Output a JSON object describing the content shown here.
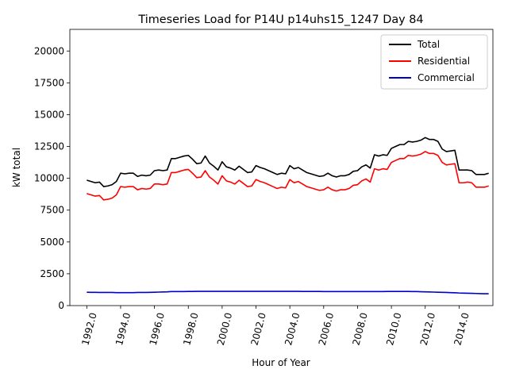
{
  "chart_data": {
    "type": "line",
    "title": "Timeseries Load for P14U p14uhs15_1247  Day 84",
    "xlabel": "Hour of Year",
    "ylabel": "kW total",
    "xlim": [
      1991.0,
      2016.0
    ],
    "ylim": [
      0,
      21700
    ],
    "x_ticks": [
      1992,
      1994,
      1996,
      1998,
      2000,
      2002,
      2004,
      2006,
      2008,
      2010,
      2012,
      2014
    ],
    "x_tick_labels": [
      "1992.0",
      "1994.0",
      "1996.0",
      "1998.0",
      "2000.0",
      "2002.0",
      "2004.0",
      "2006.0",
      "2008.0",
      "2010.0",
      "2012.0",
      "2014.0"
    ],
    "y_ticks": [
      0,
      2500,
      5000,
      7500,
      10000,
      12500,
      15000,
      17500,
      20000
    ],
    "y_tick_labels": [
      "0",
      "2500",
      "5000",
      "7500",
      "10000",
      "12500",
      "15000",
      "17500",
      "20000"
    ],
    "legend_position": "top-right",
    "x": [
      1992,
      1992.25,
      1992.5,
      1992.75,
      1993,
      1993.25,
      1993.5,
      1993.75,
      1994,
      1994.25,
      1994.5,
      1994.75,
      1995,
      1995.25,
      1995.5,
      1995.75,
      1996,
      1996.25,
      1996.5,
      1996.75,
      1997,
      1997.25,
      1997.5,
      1997.75,
      1998,
      1998.25,
      1998.5,
      1998.75,
      1999,
      1999.25,
      1999.5,
      1999.75,
      2000,
      2000.25,
      2000.5,
      2000.75,
      2001,
      2001.25,
      2001.5,
      2001.75,
      2002,
      2002.25,
      2002.5,
      2002.75,
      2003,
      2003.25,
      2003.5,
      2003.75,
      2004,
      2004.25,
      2004.5,
      2004.75,
      2005,
      2005.25,
      2005.5,
      2005.75,
      2006,
      2006.25,
      2006.5,
      2006.75,
      2007,
      2007.25,
      2007.5,
      2007.75,
      2008,
      2008.25,
      2008.5,
      2008.75,
      2009,
      2009.25,
      2009.5,
      2009.75,
      2010,
      2010.25,
      2010.5,
      2010.75,
      2011,
      2011.25,
      2011.5,
      2011.75,
      2012,
      2012.25,
      2012.5,
      2012.75,
      2013,
      2013.25,
      2013.5,
      2013.75,
      2014,
      2014.25,
      2014.5,
      2014.75,
      2015,
      2015.25,
      2015.5,
      2015.75
    ],
    "series": [
      {
        "name": "Total",
        "color": "#000000",
        "values": [
          9850,
          9750,
          9650,
          9700,
          9350,
          9400,
          9500,
          9750,
          10400,
          10350,
          10400,
          10400,
          10150,
          10250,
          10200,
          10250,
          10600,
          10650,
          10600,
          10650,
          11550,
          11550,
          11650,
          11750,
          11800,
          11500,
          11150,
          11200,
          11750,
          11200,
          10950,
          10650,
          11300,
          10900,
          10800,
          10650,
          10950,
          10700,
          10450,
          10500,
          11000,
          10850,
          10750,
          10600,
          10450,
          10300,
          10400,
          10350,
          11000,
          10750,
          10850,
          10650,
          10450,
          10350,
          10250,
          10150,
          10200,
          10400,
          10200,
          10100,
          10200,
          10200,
          10300,
          10550,
          10600,
          10900,
          11050,
          10800,
          11850,
          11750,
          11850,
          11800,
          12350,
          12500,
          12650,
          12650,
          12900,
          12850,
          12900,
          13000,
          13200,
          13050,
          13050,
          12900,
          12300,
          12100,
          12150,
          12200,
          10650,
          10650,
          10650,
          10600,
          10300,
          10300,
          10300,
          10400
        ]
      },
      {
        "name": "Residential",
        "color": "#ff0000",
        "values": [
          8800,
          8700,
          8600,
          8650,
          8300,
          8350,
          8450,
          8700,
          9350,
          9300,
          9350,
          9350,
          9100,
          9200,
          9150,
          9200,
          9550,
          9550,
          9500,
          9550,
          10450,
          10450,
          10550,
          10650,
          10700,
          10400,
          10050,
          10100,
          10600,
          10100,
          9850,
          9550,
          10200,
          9800,
          9700,
          9550,
          9850,
          9600,
          9350,
          9400,
          9900,
          9750,
          9650,
          9500,
          9350,
          9200,
          9300,
          9250,
          9900,
          9650,
          9750,
          9550,
          9350,
          9250,
          9150,
          9050,
          9100,
          9300,
          9100,
          9000,
          9100,
          9100,
          9200,
          9450,
          9500,
          9800,
          9950,
          9700,
          10750,
          10650,
          10750,
          10700,
          11250,
          11400,
          11550,
          11550,
          11800,
          11750,
          11800,
          11900,
          12100,
          11950,
          11950,
          11800,
          11250,
          11050,
          11100,
          11150,
          9650,
          9650,
          9700,
          9650,
          9300,
          9300,
          9300,
          9400
        ]
      },
      {
        "name": "Commercial",
        "color": "#0000cc",
        "values": [
          1050,
          1040,
          1040,
          1030,
          1030,
          1030,
          1030,
          1020,
          1020,
          1020,
          1020,
          1020,
          1030,
          1030,
          1030,
          1040,
          1050,
          1060,
          1070,
          1080,
          1100,
          1100,
          1100,
          1100,
          1110,
          1110,
          1120,
          1120,
          1120,
          1120,
          1120,
          1120,
          1120,
          1120,
          1120,
          1120,
          1120,
          1120,
          1120,
          1120,
          1120,
          1120,
          1120,
          1120,
          1120,
          1120,
          1120,
          1120,
          1120,
          1120,
          1120,
          1110,
          1110,
          1110,
          1110,
          1110,
          1100,
          1100,
          1100,
          1100,
          1100,
          1100,
          1100,
          1100,
          1100,
          1100,
          1100,
          1100,
          1100,
          1100,
          1100,
          1110,
          1110,
          1110,
          1110,
          1110,
          1110,
          1100,
          1100,
          1090,
          1080,
          1070,
          1060,
          1050,
          1040,
          1030,
          1020,
          1010,
          990,
          980,
          970,
          960,
          950,
          940,
          930,
          930
        ]
      }
    ]
  }
}
